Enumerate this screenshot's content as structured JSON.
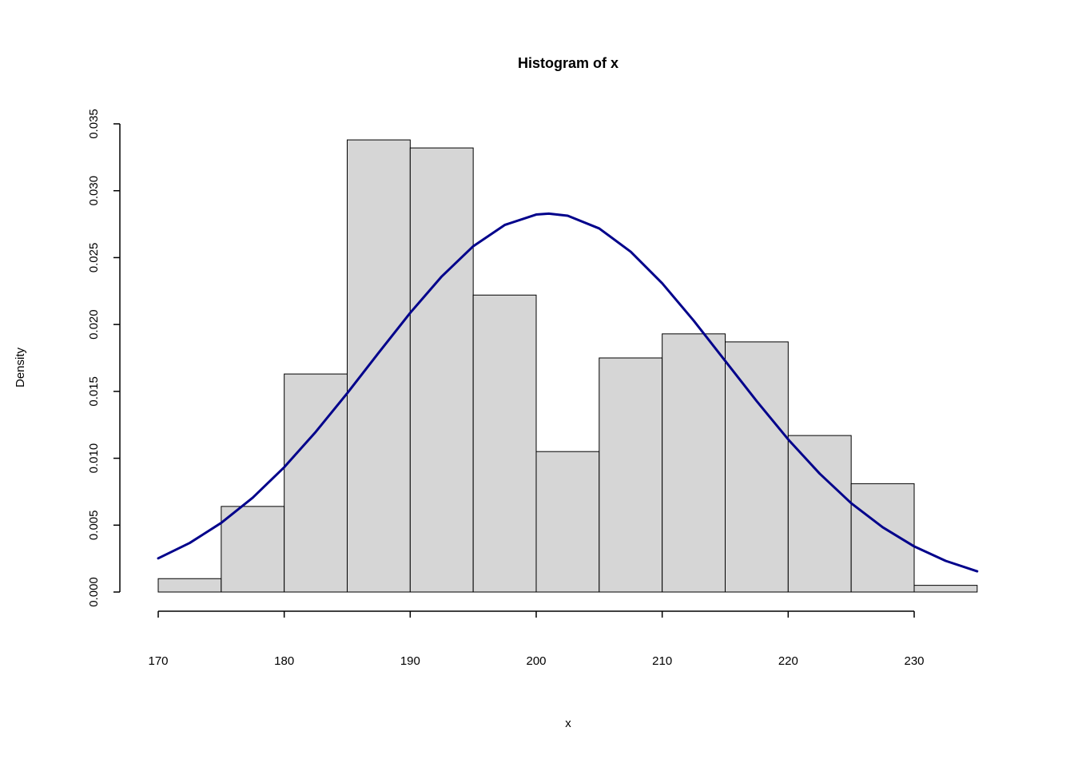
{
  "chart_data": {
    "type": "bar",
    "title": "Histogram of x",
    "xlabel": "x",
    "ylabel": "Density",
    "x_range": [
      170,
      235
    ],
    "ylim": [
      0,
      0.035
    ],
    "grid": false,
    "legend": "none",
    "bin_width": 5,
    "bin_edges": [
      170,
      175,
      180,
      185,
      190,
      195,
      200,
      205,
      210,
      215,
      220,
      225,
      230,
      235
    ],
    "bar_densities": [
      0.001,
      0.0064,
      0.0163,
      0.0338,
      0.0332,
      0.0222,
      0.0105,
      0.0175,
      0.0193,
      0.0187,
      0.0117,
      0.0081,
      0.0005
    ],
    "x_ticks": [
      170,
      180,
      190,
      200,
      210,
      220,
      230
    ],
    "x_tick_labels": [
      "170",
      "180",
      "190",
      "200",
      "210",
      "220",
      "230"
    ],
    "y_ticks": [
      0,
      0.005,
      0.01,
      0.015,
      0.02,
      0.025,
      0.03,
      0.035
    ],
    "y_tick_labels": [
      "0.000",
      "0.005",
      "0.010",
      "0.015",
      "0.020",
      "0.025",
      "0.030",
      "0.035"
    ],
    "bar_fill": "#d6d6d6",
    "bar_stroke": "#000000",
    "curve": {
      "name": "normal-density-curve",
      "color": "#00008b",
      "mean": 201,
      "sd": 14.1,
      "peak_density": 0.0283,
      "x": [
        170,
        172.5,
        175,
        177.5,
        180,
        182.5,
        185,
        187.5,
        190,
        192.5,
        195,
        197.5,
        200,
        201,
        202.5,
        205,
        207.5,
        210,
        212.5,
        215,
        217.5,
        220,
        222.5,
        225,
        227.5,
        230,
        232.5,
        235
      ],
      "y": [
        0.00252,
        0.00367,
        0.00517,
        0.00705,
        0.00933,
        0.01197,
        0.01486,
        0.01789,
        0.02087,
        0.02359,
        0.02585,
        0.02744,
        0.02822,
        0.02829,
        0.02813,
        0.02718,
        0.02544,
        0.02308,
        0.02029,
        0.01728,
        0.01427,
        0.01141,
        0.00885,
        0.00664,
        0.00484,
        0.00341,
        0.00233,
        0.00155
      ]
    }
  }
}
